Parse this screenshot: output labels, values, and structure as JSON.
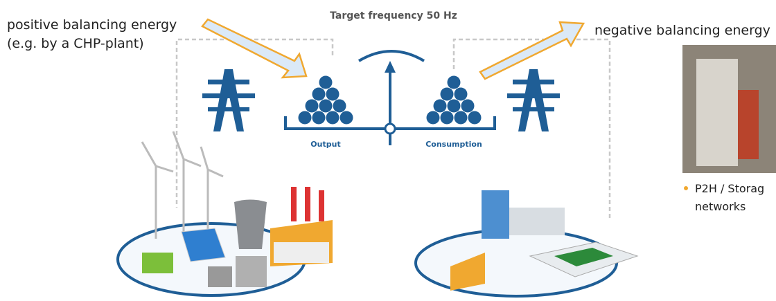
{
  "labels": {
    "positive": "positive balancing energy",
    "positive_example": "(e.g. by a CHP-plant)",
    "target": "Target frequency 50 Hz",
    "negative": "negative balancing energy",
    "output": "Output",
    "consumption": "Consumption"
  },
  "side_note": {
    "lines": [
      "P2H / Storag",
      "networks"
    ]
  }
}
